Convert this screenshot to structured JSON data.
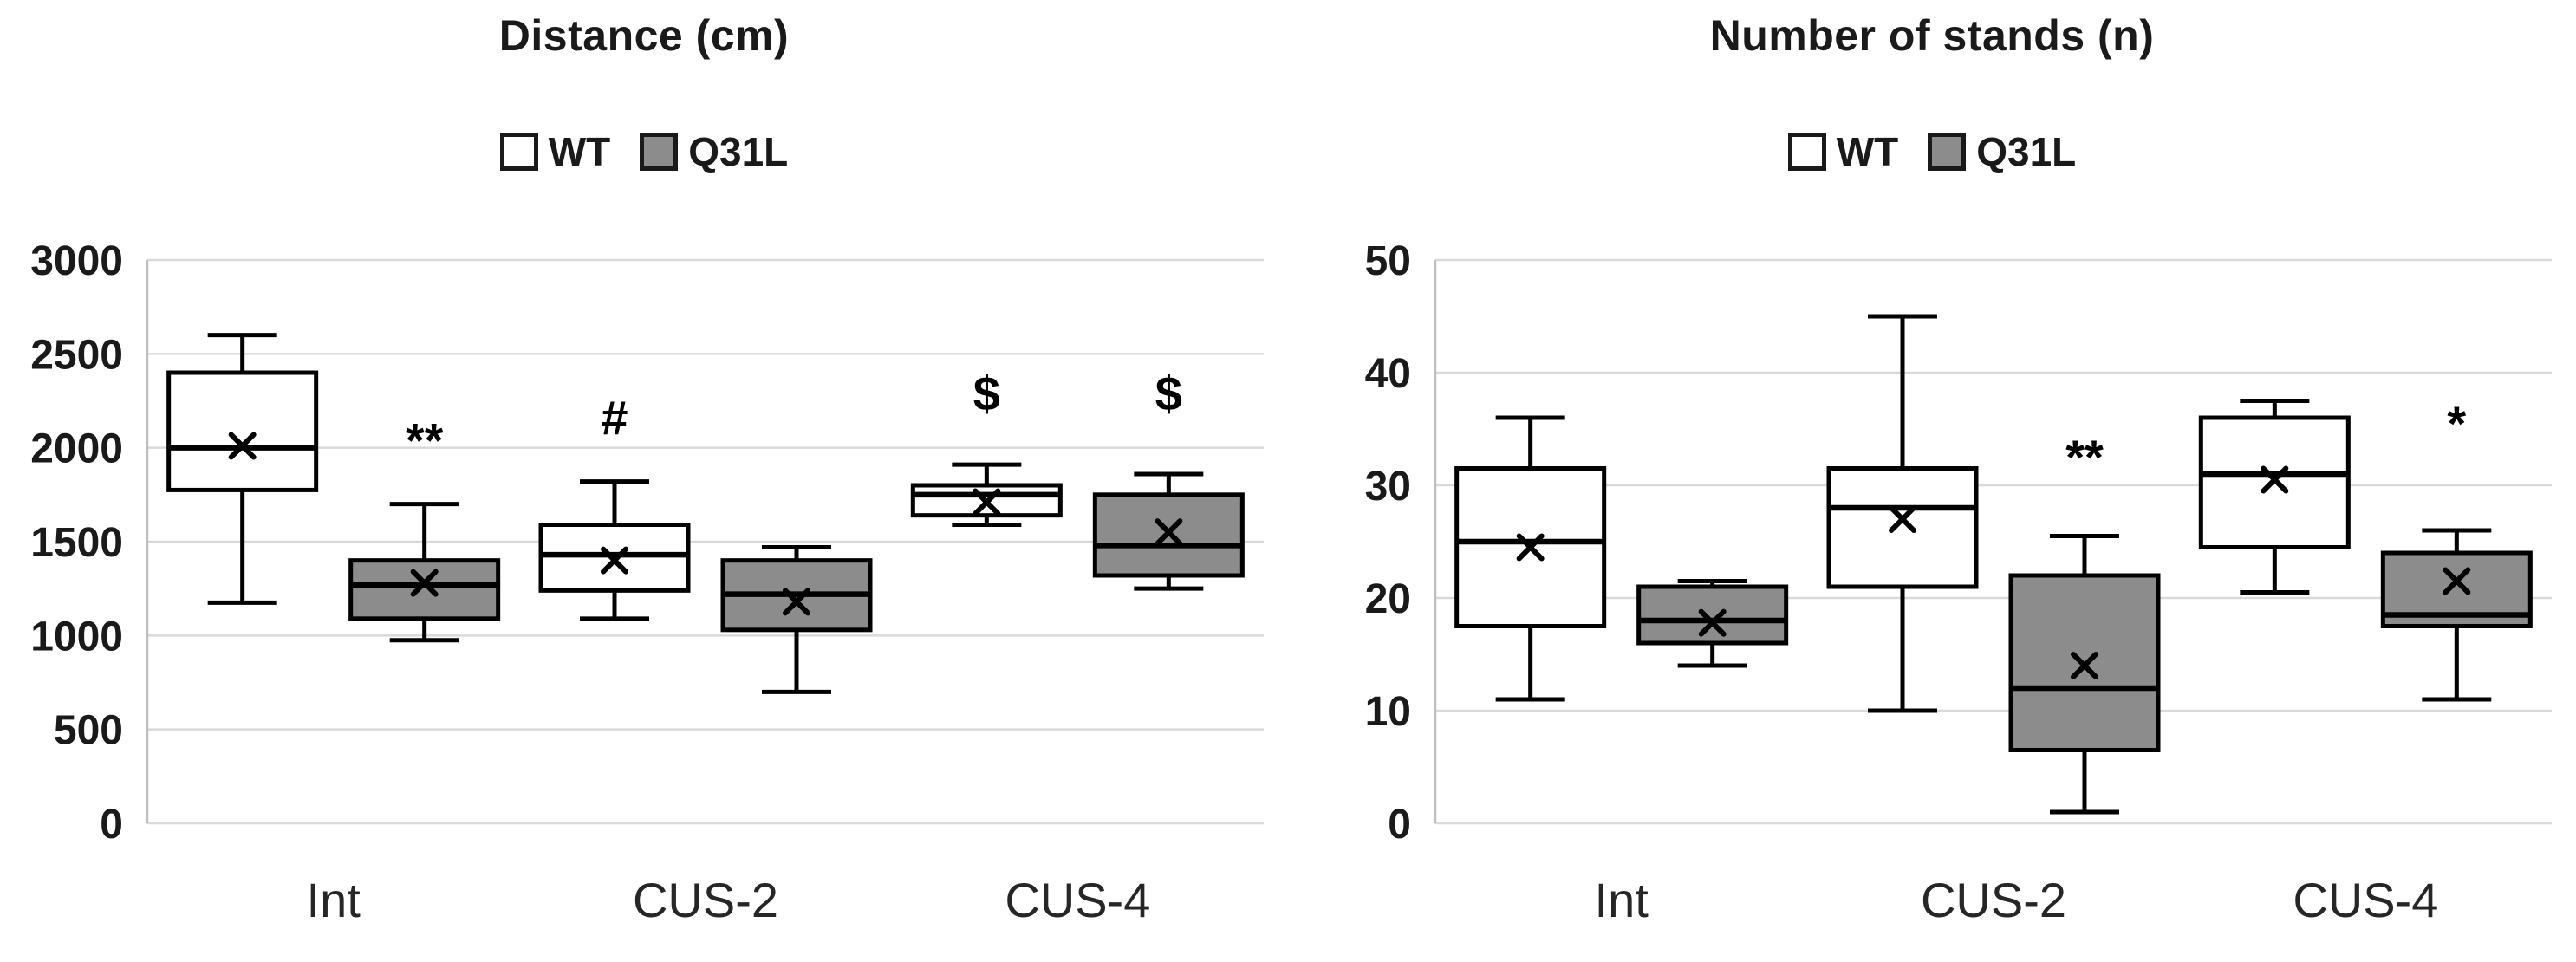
{
  "page": {
    "background": "#ffffff"
  },
  "style": {
    "box_stroke": "#000000",
    "grid_color": "#d9d9d9",
    "axis_color": "#bfbfbf",
    "wt_fill": "#ffffff",
    "q31l_fill": "#8c8c8c",
    "text_color": "#1a1a1a"
  },
  "chart_data": [
    {
      "type": "boxplot",
      "title": "Distance (cm)",
      "categories": [
        "Int",
        "CUS-2",
        "CUS-4"
      ],
      "ylim": [
        0,
        3000
      ],
      "yticks": [
        0,
        500,
        1000,
        1500,
        2000,
        2500,
        3000
      ],
      "grid": true,
      "legend_position": "top",
      "series": [
        {
          "name": "WT",
          "fill": "#ffffff",
          "boxes": [
            {
              "category": "Int",
              "min": 1175,
              "q1": 1775,
              "median": 2000,
              "mean": 2010,
              "q3": 2400,
              "max": 2600,
              "annotation": "",
              "annotation_y": null
            },
            {
              "category": "CUS-2",
              "min": 1090,
              "q1": 1240,
              "median": 1430,
              "mean": 1400,
              "q3": 1590,
              "max": 1820,
              "annotation": "#",
              "annotation_y": 2070
            },
            {
              "category": "CUS-4",
              "min": 1590,
              "q1": 1640,
              "median": 1750,
              "mean": 1710,
              "q3": 1800,
              "max": 1910,
              "annotation": "$",
              "annotation_y": 2200
            }
          ]
        },
        {
          "name": "Q31L",
          "fill": "#8c8c8c",
          "boxes": [
            {
              "category": "Int",
              "min": 975,
              "q1": 1090,
              "median": 1270,
              "mean": 1280,
              "q3": 1400,
              "max": 1700,
              "annotation": "**",
              "annotation_y": 1950
            },
            {
              "category": "CUS-2",
              "min": 700,
              "q1": 1030,
              "median": 1220,
              "mean": 1180,
              "q3": 1400,
              "max": 1470,
              "annotation": "",
              "annotation_y": null
            },
            {
              "category": "CUS-4",
              "min": 1250,
              "q1": 1320,
              "median": 1480,
              "mean": 1550,
              "q3": 1750,
              "max": 1860,
              "annotation": "$",
              "annotation_y": 2200
            }
          ]
        }
      ]
    },
    {
      "type": "boxplot",
      "title": "Number of stands (n)",
      "categories": [
        "Int",
        "CUS-2",
        "CUS-4"
      ],
      "ylim": [
        0,
        50
      ],
      "yticks": [
        0,
        10,
        20,
        30,
        40,
        50
      ],
      "grid": true,
      "legend_position": "top",
      "series": [
        {
          "name": "WT",
          "fill": "#ffffff",
          "boxes": [
            {
              "category": "Int",
              "min": 11,
              "q1": 17.5,
              "median": 25,
              "mean": 24.5,
              "q3": 31.5,
              "max": 36,
              "annotation": "",
              "annotation_y": null
            },
            {
              "category": "CUS-2",
              "min": 10,
              "q1": 21,
              "median": 28,
              "mean": 27,
              "q3": 31.5,
              "max": 45,
              "annotation": "",
              "annotation_y": null
            },
            {
              "category": "CUS-4",
              "min": 20.5,
              "q1": 24.5,
              "median": 31,
              "mean": 30.5,
              "q3": 36,
              "max": 37.5,
              "annotation": "",
              "annotation_y": null
            }
          ]
        },
        {
          "name": "Q31L",
          "fill": "#8c8c8c",
          "boxes": [
            {
              "category": "Int",
              "min": 14,
              "q1": 16,
              "median": 18,
              "mean": 17.8,
              "q3": 21,
              "max": 21.5,
              "annotation": "",
              "annotation_y": null
            },
            {
              "category": "CUS-2",
              "min": 1,
              "q1": 6.5,
              "median": 12,
              "mean": 14,
              "q3": 22,
              "max": 25.5,
              "annotation": "**",
              "annotation_y": 31
            },
            {
              "category": "CUS-4",
              "min": 11,
              "q1": 17.5,
              "median": 18.5,
              "mean": 21.5,
              "q3": 24,
              "max": 26,
              "annotation": "*",
              "annotation_y": 34
            }
          ]
        }
      ]
    }
  ]
}
